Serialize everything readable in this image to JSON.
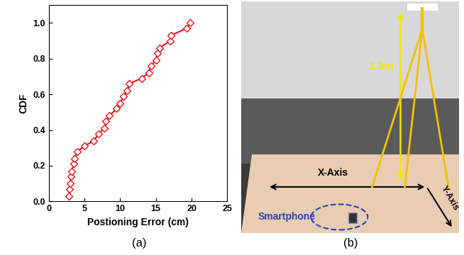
{
  "chart_data": {
    "type": "line",
    "title": "(a)",
    "x_label": "Postioning Error (cm)",
    "y_label": "CDF",
    "x": [
      2.8,
      2.9,
      3.0,
      3.1,
      3.2,
      3.5,
      3.6,
      4.0,
      5.0,
      6.3,
      7.0,
      7.8,
      8.0,
      8.5,
      9.5,
      10.0,
      10.5,
      11.0,
      11.3,
      13.0,
      14.0,
      14.3,
      15.0,
      15.2,
      15.5,
      17.0,
      17.1,
      19.3,
      19.8
    ],
    "series": [
      {
        "name": "CDF",
        "color": "#e8141b",
        "marker": "diamond",
        "line_style": "solid",
        "values": [
          0.03,
          0.07,
          0.1,
          0.14,
          0.17,
          0.21,
          0.24,
          0.28,
          0.31,
          0.34,
          0.38,
          0.41,
          0.45,
          0.48,
          0.52,
          0.55,
          0.59,
          0.62,
          0.66,
          0.69,
          0.72,
          0.76,
          0.79,
          0.83,
          0.86,
          0.9,
          0.93,
          0.97,
          1.0
        ]
      }
    ],
    "xlim": [
      0,
      25
    ],
    "xticks": [
      0,
      5,
      10,
      15,
      20,
      25
    ],
    "ylim": [
      0,
      1.1
    ],
    "yticks": [
      {
        "value": 0.0,
        "label": "0.0"
      },
      {
        "value": 0.2,
        "label": "0.2"
      },
      {
        "value": 0.4,
        "label": "0.4"
      },
      {
        "value": 0.6,
        "label": "0.6"
      },
      {
        "value": 0.8,
        "label": "0.8"
      },
      {
        "value": 1.0,
        "label": "1.0"
      }
    ],
    "grid": false
  },
  "photo": {
    "caption": "(b)",
    "height_label": "1.5m",
    "x_axis_label": "X-Axis",
    "y_axis_label": "Y-Axis",
    "device_label": "Smartphone"
  }
}
